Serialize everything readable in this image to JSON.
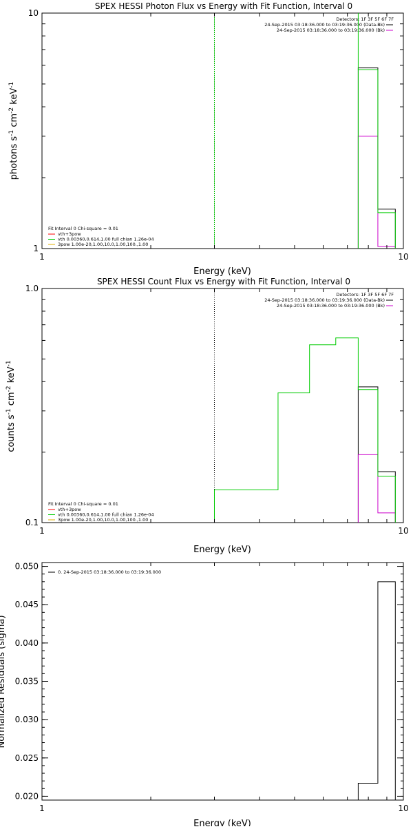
{
  "chart_data": [
    {
      "type": "line",
      "title": "SPEX HESSI Photon Flux vs Energy with Fit Function, Interval 0",
      "xlabel": "Energy (keV)",
      "ylabel_main": "photons s",
      "ylabel_parts": [
        "photons s",
        "-1",
        " cm",
        "-2",
        " keV",
        "-1"
      ],
      "xscale": "log",
      "yscale": "log",
      "xlim": [
        1,
        10
      ],
      "ylim": [
        1,
        10
      ],
      "x_ticks": [
        {
          "v": 1,
          "label": "1"
        },
        {
          "v": 10,
          "label": "10"
        }
      ],
      "y_ticks": [
        {
          "v": 1,
          "label": "1"
        },
        {
          "v": 10,
          "label": "10"
        }
      ],
      "header_right": [
        "Detectors: 1F 3F 5F 6F 7F",
        "24-Sep-2015 03:18:36.000 to 03:19:36.000 (Data-Bk)",
        "24-Sep-2015 03:18:36.000 to 03:19:36.000 (Bk)"
      ],
      "legend_header": "Fit Interval  0    Chi-square = 0.01",
      "legend_lines": [
        {
          "text": "vth+3pow",
          "color": "#ff0000"
        },
        {
          "text": "vth 0.00360,0.614,1.00   full chian 1.26e-04",
          "color": "#00cc00"
        },
        {
          "text": "3pow 1.00e-20,1.00,10.0,1.00,100.,1.00",
          "color": "#e0b000"
        }
      ],
      "vline": {
        "x": 3.0,
        "color": "#00bb00",
        "style": "dashed"
      },
      "series": [
        {
          "color": "#000000",
          "edges": [
            7.5,
            8.5,
            9.5
          ],
          "values": [
            5.85,
            1.47
          ]
        },
        {
          "color": "#cc00cc",
          "edges": [
            7.5,
            8.5,
            9.5
          ],
          "values": [
            3.0,
            1.02
          ]
        },
        {
          "color": "#00cc00",
          "edges": [
            7.5,
            8.5,
            9.5
          ],
          "values": [
            5.75,
            1.42
          ],
          "spike_at": 7.5
        }
      ]
    },
    {
      "type": "line",
      "title": "SPEX HESSI Count Flux vs Energy with Fit Function, Interval 0",
      "xlabel": "Energy (keV)",
      "ylabel_parts": [
        "counts s",
        "-1",
        " cm",
        "-2",
        " keV",
        "-1"
      ],
      "xscale": "log",
      "yscale": "log",
      "xlim": [
        1,
        10
      ],
      "ylim": [
        0.1,
        1.0
      ],
      "x_ticks": [
        {
          "v": 1,
          "label": "1"
        },
        {
          "v": 10,
          "label": "10"
        }
      ],
      "y_ticks": [
        {
          "v": 0.1,
          "label": "0.1"
        },
        {
          "v": 1.0,
          "label": "1.0"
        }
      ],
      "header_right": [
        "Detectors: 1F 3F 5F 6F 7F",
        "24-Sep-2015 03:18:36.000 to 03:19:36.000 (Data-Bk)",
        "24-Sep-2015 03:18:36.000 to 03:19:36.000 (Bk)"
      ],
      "legend_header": "Fit Interval  0    Chi-square = 0.01",
      "legend_lines": [
        {
          "text": "vth+3pow",
          "color": "#ff0000"
        },
        {
          "text": "vth 0.00360,0.614,1.00   full chian 1.26e-04",
          "color": "#00cc00"
        },
        {
          "text": "3pow 1.00e-20,1.00,10.0,1.00,100.,1.00",
          "color": "#e0b000"
        }
      ],
      "vline": {
        "x": 3.0,
        "color": "#000000",
        "style": "dotted"
      },
      "series": [
        {
          "color": "#000000",
          "edges": [
            7.5,
            8.5,
            9.5
          ],
          "values": [
            0.38,
            0.165
          ]
        },
        {
          "color": "#cc00cc",
          "edges": [
            7.5,
            8.5,
            9.5
          ],
          "values": [
            0.195,
            0.11
          ]
        },
        {
          "color": "#00cc00",
          "edges": [
            3.0,
            3.5,
            4.5,
            5.5,
            6.5,
            7.5,
            8.5,
            9.5
          ],
          "values": [
            0.138,
            0.138,
            0.358,
            0.575,
            0.615,
            0.37,
            0.158
          ]
        }
      ]
    },
    {
      "type": "line",
      "title": "",
      "xlabel": "Energy (keV)",
      "ylabel": "Normalized Residuals (sigma)",
      "xscale": "log",
      "yscale": "linear",
      "xlim": [
        1,
        10
      ],
      "ylim": [
        0.0195,
        0.0505
      ],
      "x_ticks": [
        {
          "v": 1,
          "label": "1"
        },
        {
          "v": 10,
          "label": "10"
        }
      ],
      "y_ticks": [
        {
          "v": 0.02,
          "label": "0.020"
        },
        {
          "v": 0.025,
          "label": "0.025"
        },
        {
          "v": 0.03,
          "label": "0.030"
        },
        {
          "v": 0.035,
          "label": "0.035"
        },
        {
          "v": 0.04,
          "label": "0.040"
        },
        {
          "v": 0.045,
          "label": "0.045"
        },
        {
          "v": 0.05,
          "label": "0.050"
        }
      ],
      "legend_lines": [
        {
          "text": "0. 24-Sep-2015 03:18:36.000 to 03:19:36.000",
          "color": "#000000"
        }
      ],
      "series": [
        {
          "color": "#000000",
          "edges": [
            7.5,
            8.5,
            9.5
          ],
          "values": [
            0.0217,
            0.048
          ]
        }
      ]
    }
  ]
}
